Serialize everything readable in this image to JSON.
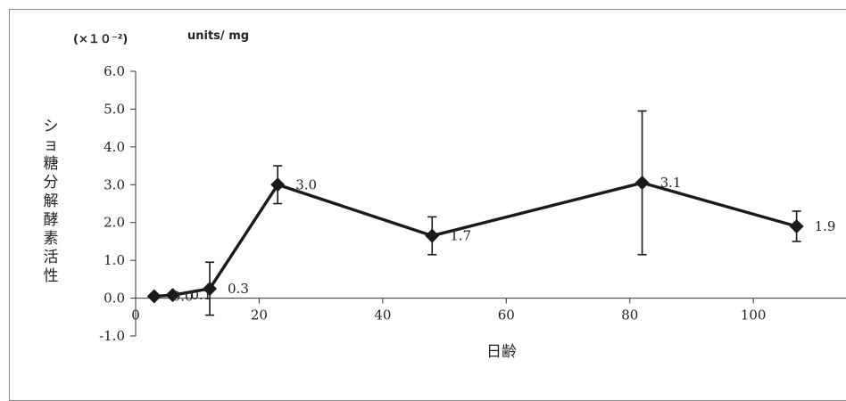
{
  "chart_data": {
    "type": "line",
    "title": "",
    "y_unit_note": "(×１０⁻²)",
    "y_unit": "units/ mg",
    "ylabel": "ショ糖分解酵素活性",
    "xlabel": "日齢",
    "xlim": [
      0,
      115
    ],
    "ylim": [
      -1.0,
      6.0
    ],
    "x_ticks": [
      "0",
      "20",
      "40",
      "60",
      "80",
      "100"
    ],
    "y_ticks": [
      "6.0",
      "5.0",
      "4.0",
      "3.0",
      "2.0",
      "1.0",
      "0.0",
      "-1.0"
    ],
    "grid": false,
    "series": [
      {
        "x": [
          3,
          6,
          12,
          23,
          48,
          82,
          107
        ],
        "y": [
          0.05,
          0.08,
          0.25,
          3.0,
          1.65,
          3.05,
          1.9
        ],
        "error": [
          0.0,
          0.0,
          0.7,
          0.5,
          0.5,
          1.9,
          0.4
        ],
        "color": "#1a1a1a",
        "marker": "diamond"
      }
    ],
    "data_labels": [
      {
        "text": "0.0",
        "point": 0
      },
      {
        "text": "0.1",
        "point": 1
      },
      {
        "text": "0.3",
        "point": 2
      },
      {
        "text": "3.0",
        "point": 3
      },
      {
        "text": "1.7",
        "point": 4
      },
      {
        "text": "3.1",
        "point": 5
      },
      {
        "text": "1.9",
        "point": 6
      }
    ]
  }
}
